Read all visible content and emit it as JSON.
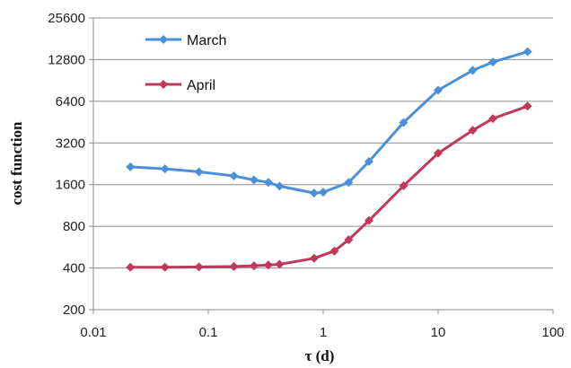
{
  "chart_data": {
    "type": "line",
    "xlabel": "τ (d)",
    "ylabel": "cost function",
    "x_scale": "log",
    "y_scale": "log",
    "xlim": [
      0.01,
      100
    ],
    "ylim": [
      200,
      25600
    ],
    "x_ticks": [
      0.01,
      0.1,
      1,
      10,
      100
    ],
    "x_tick_labels": [
      "0.01",
      "0.1",
      "1",
      "10",
      "100"
    ],
    "y_ticks": [
      200,
      400,
      800,
      1600,
      3200,
      6400,
      12800,
      25600
    ],
    "y_tick_labels": [
      "200",
      "400",
      "800",
      "1600",
      "3200",
      "6400",
      "12800",
      "25600"
    ],
    "grid": "horizontal",
    "legend_position": "top-left",
    "series": [
      {
        "name": "March",
        "color": "#4a90d9",
        "marker": "diamond",
        "x": [
          0.021,
          0.042,
          0.083,
          0.167,
          0.25,
          0.333,
          0.417,
          0.833,
          1.0,
          1.667,
          2.5,
          5,
          10,
          20,
          30,
          60
        ],
        "y": [
          2150,
          2080,
          1980,
          1850,
          1730,
          1660,
          1560,
          1390,
          1410,
          1660,
          2350,
          4500,
          7700,
          10700,
          12300,
          14600
        ]
      },
      {
        "name": "April",
        "color": "#c0385a",
        "marker": "diamond",
        "x": [
          0.021,
          0.042,
          0.083,
          0.167,
          0.25,
          0.333,
          0.417,
          0.833,
          1.25,
          1.667,
          2.5,
          5,
          10,
          20,
          30,
          60
        ],
        "y": [
          405,
          405,
          407,
          410,
          415,
          420,
          425,
          470,
          530,
          640,
          880,
          1570,
          2700,
          3950,
          4800,
          5900
        ]
      }
    ]
  }
}
